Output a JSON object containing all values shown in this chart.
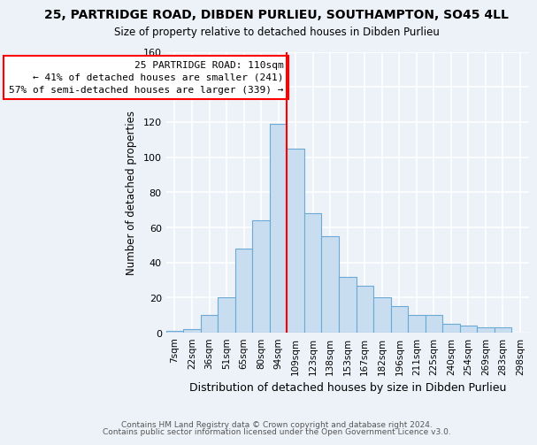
{
  "title": "25, PARTRIDGE ROAD, DIBDEN PURLIEU, SOUTHAMPTON, SO45 4LL",
  "subtitle": "Size of property relative to detached houses in Dibden Purlieu",
  "xlabel": "Distribution of detached houses by size in Dibden Purlieu",
  "ylabel": "Number of detached properties",
  "bin_labels": [
    "7sqm",
    "22sqm",
    "36sqm",
    "51sqm",
    "65sqm",
    "80sqm",
    "94sqm",
    "109sqm",
    "123sqm",
    "138sqm",
    "153sqm",
    "167sqm",
    "182sqm",
    "196sqm",
    "211sqm",
    "225sqm",
    "240sqm",
    "254sqm",
    "269sqm",
    "283sqm",
    "298sqm"
  ],
  "bar_values": [
    1,
    2,
    10,
    20,
    48,
    64,
    119,
    105,
    68,
    55,
    32,
    27,
    20,
    15,
    10,
    10,
    5,
    4,
    3,
    3,
    0
  ],
  "bar_color": "#c9ddf0",
  "bar_edge_color": "#6aaad4",
  "property_line_label": "25 PARTRIDGE ROAD: 110sqm",
  "annotation_line1": "← 41% of detached houses are smaller (241)",
  "annotation_line2": "57% of semi-detached houses are larger (339) →",
  "ylim": [
    0,
    160
  ],
  "yticks": [
    0,
    20,
    40,
    60,
    80,
    100,
    120,
    140,
    160
  ],
  "background_color": "#edf2f9",
  "grid_color": "#ffffff",
  "footer1": "Contains HM Land Registry data © Crown copyright and database right 2024.",
  "footer2": "Contains public sector information licensed under the Open Government Licence v3.0."
}
